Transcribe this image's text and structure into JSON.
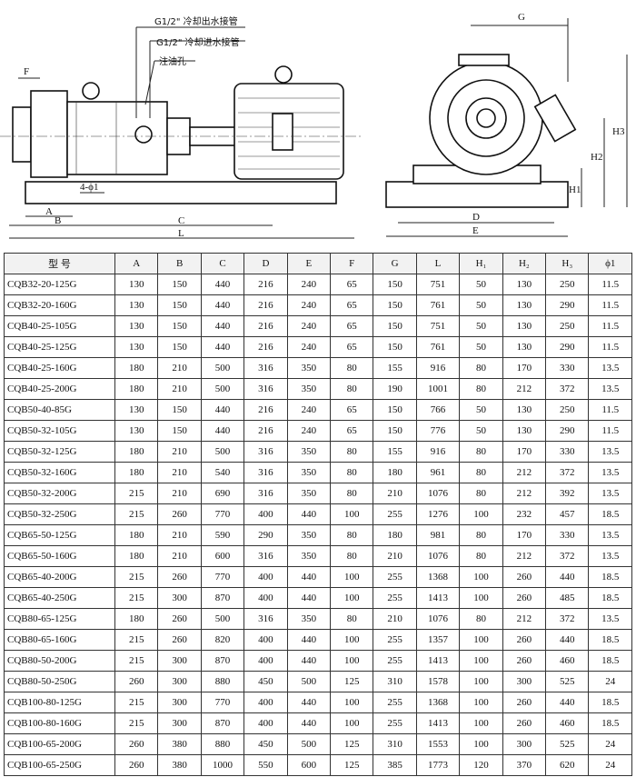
{
  "drawing": {
    "labels": {
      "outlet": "G1/2\" 冷却出水接管",
      "inlet": "G1/2\" 冷却进水接管",
      "oil": "注油孔",
      "F": "F",
      "A": "A",
      "B": "B",
      "C": "C",
      "L": "L",
      "holes": "4-ϕ1",
      "G": "G",
      "H3": "H3",
      "H2": "H2",
      "H1": "H1",
      "D": "D",
      "E": "E"
    }
  },
  "table": {
    "header": [
      "型 号",
      "A",
      "B",
      "C",
      "D",
      "E",
      "F",
      "G",
      "L",
      "H₁",
      "H₂",
      "H₃",
      "ϕ1"
    ],
    "rows": [
      [
        "CQB32-20-125G",
        "130",
        "150",
        "440",
        "216",
        "240",
        "65",
        "150",
        "751",
        "50",
        "130",
        "250",
        "11.5"
      ],
      [
        "CQB32-20-160G",
        "130",
        "150",
        "440",
        "216",
        "240",
        "65",
        "150",
        "761",
        "50",
        "130",
        "290",
        "11.5"
      ],
      [
        "CQB40-25-105G",
        "130",
        "150",
        "440",
        "216",
        "240",
        "65",
        "150",
        "751",
        "50",
        "130",
        "250",
        "11.5"
      ],
      [
        "CQB40-25-125G",
        "130",
        "150",
        "440",
        "216",
        "240",
        "65",
        "150",
        "761",
        "50",
        "130",
        "290",
        "11.5"
      ],
      [
        "CQB40-25-160G",
        "180",
        "210",
        "500",
        "316",
        "350",
        "80",
        "155",
        "916",
        "80",
        "170",
        "330",
        "13.5"
      ],
      [
        "CQB40-25-200G",
        "180",
        "210",
        "500",
        "316",
        "350",
        "80",
        "190",
        "1001",
        "80",
        "212",
        "372",
        "13.5"
      ],
      [
        "CQB50-40-85G",
        "130",
        "150",
        "440",
        "216",
        "240",
        "65",
        "150",
        "766",
        "50",
        "130",
        "250",
        "11.5"
      ],
      [
        "CQB50-32-105G",
        "130",
        "150",
        "440",
        "216",
        "240",
        "65",
        "150",
        "776",
        "50",
        "130",
        "290",
        "11.5"
      ],
      [
        "CQB50-32-125G",
        "180",
        "210",
        "500",
        "316",
        "350",
        "80",
        "155",
        "916",
        "80",
        "170",
        "330",
        "13.5"
      ],
      [
        "CQB50-32-160G",
        "180",
        "210",
        "540",
        "316",
        "350",
        "80",
        "180",
        "961",
        "80",
        "212",
        "372",
        "13.5"
      ],
      [
        "CQB50-32-200G",
        "215",
        "210",
        "690",
        "316",
        "350",
        "80",
        "210",
        "1076",
        "80",
        "212",
        "392",
        "13.5"
      ],
      [
        "CQB50-32-250G",
        "215",
        "260",
        "770",
        "400",
        "440",
        "100",
        "255",
        "1276",
        "100",
        "232",
        "457",
        "18.5"
      ],
      [
        "CQB65-50-125G",
        "180",
        "210",
        "590",
        "290",
        "350",
        "80",
        "180",
        "981",
        "80",
        "170",
        "330",
        "13.5"
      ],
      [
        "CQB65-50-160G",
        "180",
        "210",
        "600",
        "316",
        "350",
        "80",
        "210",
        "1076",
        "80",
        "212",
        "372",
        "13.5"
      ],
      [
        "CQB65-40-200G",
        "215",
        "260",
        "770",
        "400",
        "440",
        "100",
        "255",
        "1368",
        "100",
        "260",
        "440",
        "18.5"
      ],
      [
        "CQB65-40-250G",
        "215",
        "300",
        "870",
        "400",
        "440",
        "100",
        "255",
        "1413",
        "100",
        "260",
        "485",
        "18.5"
      ],
      [
        "CQB80-65-125G",
        "180",
        "260",
        "500",
        "316",
        "350",
        "80",
        "210",
        "1076",
        "80",
        "212",
        "372",
        "13.5"
      ],
      [
        "CQB80-65-160G",
        "215",
        "260",
        "820",
        "400",
        "440",
        "100",
        "255",
        "1357",
        "100",
        "260",
        "440",
        "18.5"
      ],
      [
        "CQB80-50-200G",
        "215",
        "300",
        "870",
        "400",
        "440",
        "100",
        "255",
        "1413",
        "100",
        "260",
        "460",
        "18.5"
      ],
      [
        "CQB80-50-250G",
        "260",
        "300",
        "880",
        "450",
        "500",
        "125",
        "310",
        "1578",
        "100",
        "300",
        "525",
        "24"
      ],
      [
        "CQB100-80-125G",
        "215",
        "300",
        "770",
        "400",
        "440",
        "100",
        "255",
        "1368",
        "100",
        "260",
        "440",
        "18.5"
      ],
      [
        "CQB100-80-160G",
        "215",
        "300",
        "870",
        "400",
        "440",
        "100",
        "255",
        "1413",
        "100",
        "260",
        "460",
        "18.5"
      ],
      [
        "CQB100-65-200G",
        "260",
        "380",
        "880",
        "450",
        "500",
        "125",
        "310",
        "1553",
        "100",
        "300",
        "525",
        "24"
      ],
      [
        "CQB100-65-250G",
        "260",
        "380",
        "1000",
        "550",
        "600",
        "125",
        "385",
        "1773",
        "120",
        "370",
        "620",
        "24"
      ]
    ]
  }
}
